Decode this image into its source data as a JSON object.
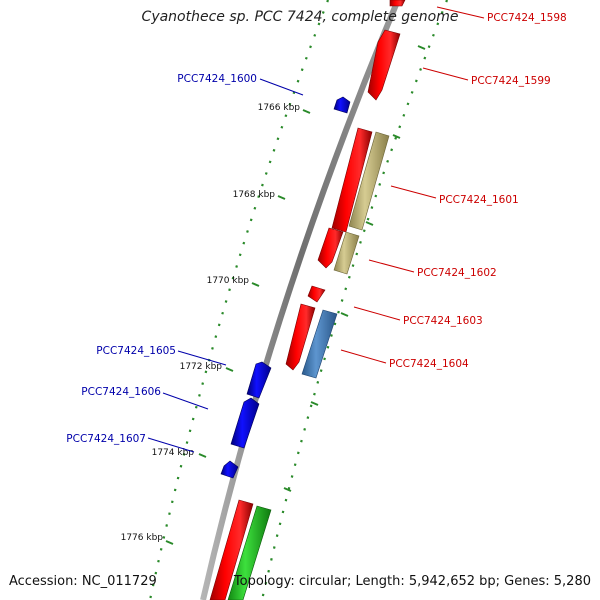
{
  "title": "Cyanothece sp. PCC 7424, complete genome",
  "footer": {
    "accession": "Accession: NC_011729",
    "summary": "Topology: circular; Length: 5,942,652 bp; Genes: 5,280"
  },
  "colors": {
    "backbone": "#7a7a7a",
    "tick": "#2a8a2a",
    "forward_cds": "#ff0000",
    "reverse_cds": "#0000ff",
    "forward_label": "#cc0000",
    "reverse_label": "#0000aa",
    "olive_feature": "#c8bd82",
    "steel_feature": "#4f86c0",
    "green_feature": "#2fcf2f"
  },
  "scale": {
    "unit": "kbp",
    "ticks": [
      {
        "label": "1766 kbp",
        "kbp": 1766
      },
      {
        "label": "1768 kbp",
        "kbp": 1768
      },
      {
        "label": "1770 kbp",
        "kbp": 1770
      },
      {
        "label": "1772 kbp",
        "kbp": 1772
      },
      {
        "label": "1774 kbp",
        "kbp": 1774
      },
      {
        "label": "1776 kbp",
        "kbp": 1776
      }
    ]
  },
  "genes": [
    {
      "label": "PCC7424_1598",
      "strand": "forward"
    },
    {
      "label": "PCC7424_1599",
      "strand": "forward"
    },
    {
      "label": "PCC7424_1600",
      "strand": "reverse"
    },
    {
      "label": "PCC7424_1601",
      "strand": "forward"
    },
    {
      "label": "PCC7424_1602",
      "strand": "forward"
    },
    {
      "label": "PCC7424_1603",
      "strand": "forward"
    },
    {
      "label": "PCC7424_1604",
      "strand": "forward"
    },
    {
      "label": "PCC7424_1605",
      "strand": "reverse"
    },
    {
      "label": "PCC7424_1606",
      "strand": "reverse"
    },
    {
      "label": "PCC7424_1607",
      "strand": "reverse"
    }
  ]
}
